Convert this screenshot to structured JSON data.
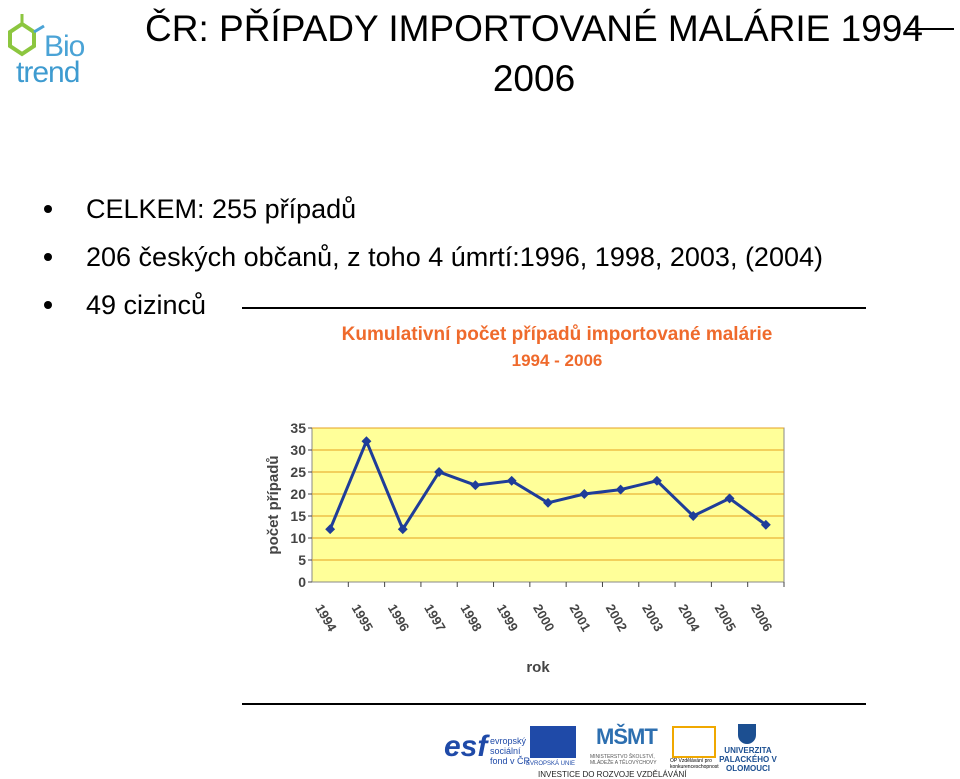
{
  "logo": {
    "line1": "Bio",
    "line2": "trend"
  },
  "title": {
    "line1": "ČR: PŘÍPADY IMPORTOVANÉ MALÁRIE 1994",
    "line2": "2006"
  },
  "bullets": [
    "CELKEM: 255 případů",
    "206 českých občanů, z toho 4 úmrtí:1996, 1998, 2003, (2004)",
    "49 cizinců"
  ],
  "chart_data": {
    "type": "line",
    "title": "Kumulativní počet případů importované malárie",
    "subtitle": "1994 - 2006",
    "xlabel": "rok",
    "ylabel": "počet případů",
    "categories": [
      "1994",
      "1995",
      "1996",
      "1997",
      "1998",
      "1999",
      "2000",
      "2001",
      "2002",
      "2003",
      "2004",
      "2005",
      "2006"
    ],
    "values": [
      12,
      32,
      12,
      25,
      22,
      23,
      18,
      20,
      21,
      23,
      15,
      19,
      13
    ],
    "ylim": [
      0,
      35
    ],
    "yticks": [
      "0",
      "5",
      "10",
      "15",
      "20",
      "25",
      "30",
      "35"
    ],
    "grid": true,
    "plot_background": "#ffff99",
    "line_color": "#1f3d99",
    "title_color": "#ef6a2c"
  },
  "footer": {
    "esf_logo": "esf",
    "esf_text": [
      "evropský",
      "sociální",
      "fond v ČR"
    ],
    "eu_label": "EVROPSKÁ UNIE",
    "msmt_logo": "MŠMT",
    "msmt_label": "MINISTERSTVO ŠKOLSTVÍ, MLÁDEŽE A TĚLOVÝCHOVY",
    "op_label": "OP Vzdělávání pro konkurenceschopnost",
    "up_label": "UNIVERZITA PALACKÉHO V OLOMOUCI",
    "caption": "INVESTICE DO ROZVOJE VZDĚLÁVÁNÍ"
  }
}
